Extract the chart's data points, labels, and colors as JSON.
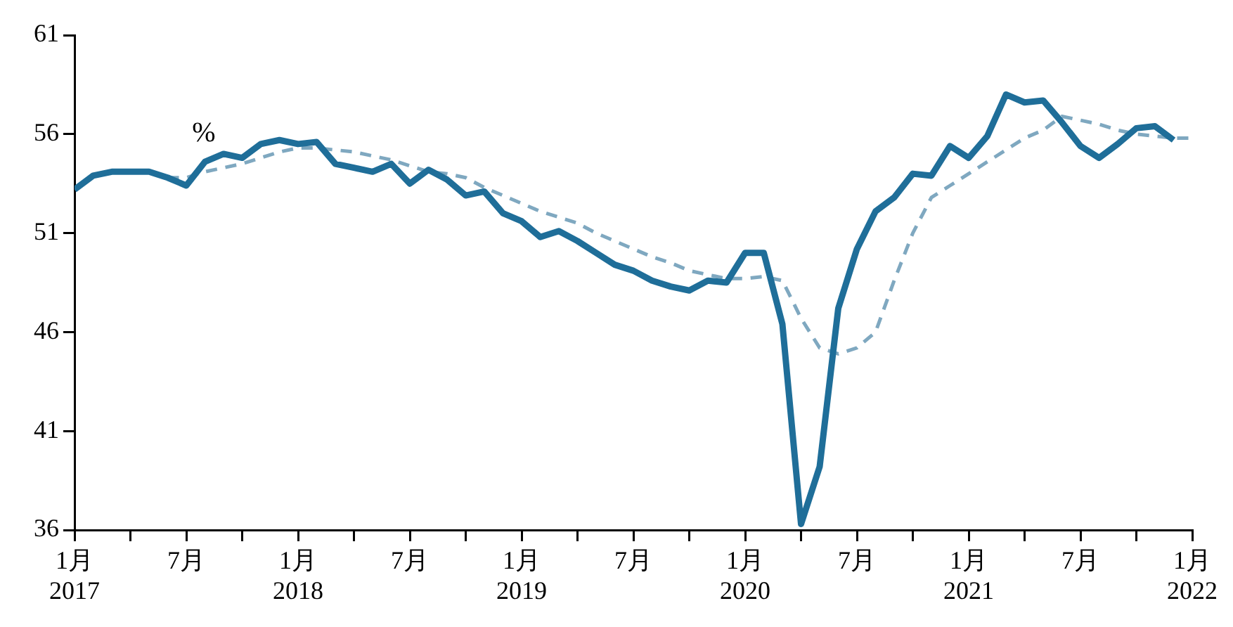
{
  "chart_data": {
    "type": "line",
    "ylabel": "%",
    "xlim": [
      "2017-01",
      "2022-01"
    ],
    "ylim": [
      36,
      61
    ],
    "yticks": [
      36,
      41,
      46,
      51,
      56,
      61
    ],
    "xticks": [
      {
        "value": "2017-01",
        "label": "1月\n2017"
      },
      {
        "value": "2017-04",
        "label": null
      },
      {
        "value": "2017-07",
        "label": "7月"
      },
      {
        "value": "2017-10",
        "label": null
      },
      {
        "value": "2018-01",
        "label": "1月\n2018"
      },
      {
        "value": "2018-04",
        "label": null
      },
      {
        "value": "2018-07",
        "label": "7月"
      },
      {
        "value": "2018-10",
        "label": null
      },
      {
        "value": "2019-01",
        "label": "1月\n2019"
      },
      {
        "value": "2019-04",
        "label": null
      },
      {
        "value": "2019-07",
        "label": "7月"
      },
      {
        "value": "2019-10",
        "label": null
      },
      {
        "value": "2020-01",
        "label": "1月\n2020"
      },
      {
        "value": "2020-04",
        "label": null
      },
      {
        "value": "2020-07",
        "label": "7月"
      },
      {
        "value": "2020-10",
        "label": null
      },
      {
        "value": "2021-01",
        "label": "1月\n2021"
      },
      {
        "value": "2021-04",
        "label": null
      },
      {
        "value": "2021-07",
        "label": "7月"
      },
      {
        "value": "2021-10",
        "label": null
      },
      {
        "value": "2022-01",
        "label": "1月\n2022"
      }
    ],
    "grid": false,
    "legend": false,
    "marker": "none",
    "series": [
      {
        "color": "#1f6e99",
        "line_style": "solid",
        "x": [
          "2017-01",
          "2017-02",
          "2017-03",
          "2017-04",
          "2017-05",
          "2017-06",
          "2017-07",
          "2017-08",
          "2017-09",
          "2017-10",
          "2017-11",
          "2017-12",
          "2018-01",
          "2018-02",
          "2018-03",
          "2018-04",
          "2018-05",
          "2018-06",
          "2018-07",
          "2018-08",
          "2018-09",
          "2018-10",
          "2018-11",
          "2018-12",
          "2019-01",
          "2019-02",
          "2019-03",
          "2019-04",
          "2019-05",
          "2019-06",
          "2019-07",
          "2019-08",
          "2019-09",
          "2019-10",
          "2019-11",
          "2019-12",
          "2020-01",
          "2020-02",
          "2020-03",
          "2020-04",
          "2020-05",
          "2020-06",
          "2020-07",
          "2020-08",
          "2020-09",
          "2020-10",
          "2020-11",
          "2020-12",
          "2021-01",
          "2021-02",
          "2021-03",
          "2021-04",
          "2021-05",
          "2021-06",
          "2021-07",
          "2021-08",
          "2021-09",
          "2021-10",
          "2021-11",
          "2021-12"
        ],
        "values": [
          53.2,
          53.9,
          54.1,
          54.1,
          54.1,
          53.8,
          53.4,
          54.6,
          55.0,
          54.8,
          55.5,
          55.7,
          55.5,
          55.6,
          54.5,
          54.3,
          54.1,
          54.5,
          53.5,
          54.2,
          53.7,
          52.9,
          53.1,
          52.0,
          51.6,
          50.8,
          51.1,
          50.6,
          50.0,
          49.4,
          49.1,
          48.6,
          48.3,
          48.1,
          48.6,
          48.5,
          50.0,
          50.0,
          46.4,
          36.3,
          39.2,
          47.2,
          50.2,
          52.1,
          52.8,
          54.0,
          53.9,
          55.4,
          54.8,
          55.9,
          58.0,
          57.6,
          57.7,
          56.6,
          55.4,
          54.8,
          55.5,
          56.3,
          56.4,
          55.7
        ]
      },
      {
        "color": "#7fa8c0",
        "line_style": "dashed",
        "x": [
          "2017-06",
          "2017-07",
          "2017-08",
          "2017-09",
          "2017-10",
          "2017-11",
          "2017-12",
          "2018-01",
          "2018-02",
          "2018-03",
          "2018-04",
          "2018-05",
          "2018-06",
          "2018-07",
          "2018-08",
          "2018-09",
          "2018-10",
          "2018-11",
          "2018-12",
          "2019-01",
          "2019-02",
          "2019-03",
          "2019-04",
          "2019-05",
          "2019-06",
          "2019-07",
          "2019-08",
          "2019-09",
          "2019-10",
          "2019-11",
          "2019-12",
          "2020-01",
          "2020-02",
          "2020-03",
          "2020-04",
          "2020-05",
          "2020-06",
          "2020-07",
          "2020-08",
          "2020-09",
          "2020-10",
          "2020-11",
          "2020-12",
          "2021-01",
          "2021-02",
          "2021-03",
          "2021-04",
          "2021-05",
          "2021-06",
          "2021-07",
          "2021-08",
          "2021-09",
          "2021-10",
          "2021-11",
          "2021-12",
          "2022-01"
        ],
        "values": [
          53.8,
          53.8,
          54.1,
          54.3,
          54.5,
          54.8,
          55.1,
          55.3,
          55.3,
          55.2,
          55.1,
          54.9,
          54.7,
          54.4,
          54.1,
          54.0,
          53.8,
          53.3,
          52.9,
          52.5,
          52.1,
          51.8,
          51.5,
          51.0,
          50.6,
          50.2,
          49.8,
          49.5,
          49.1,
          48.9,
          48.7,
          48.7,
          48.8,
          48.6,
          46.7,
          45.2,
          44.9,
          45.2,
          46.0,
          48.6,
          51.0,
          52.8,
          53.4,
          54.0,
          54.6,
          55.2,
          55.8,
          56.2,
          56.9,
          56.7,
          56.5,
          56.2,
          56.0,
          55.9,
          55.8,
          55.8
        ]
      }
    ]
  }
}
